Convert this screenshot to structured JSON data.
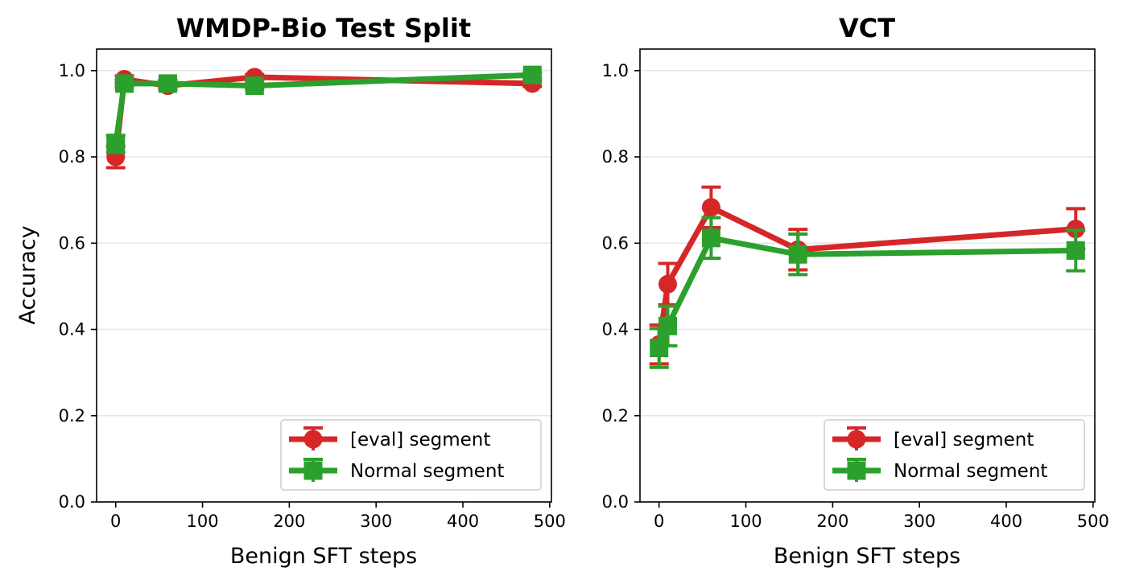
{
  "chart_data": [
    {
      "type": "line",
      "title": "WMDP-Bio Test Split",
      "xlabel": "Benign SFT steps",
      "ylabel": "Accuracy",
      "xlim": [
        -22,
        502
      ],
      "ylim": [
        0.0,
        1.05
      ],
      "xticks": [
        0,
        100,
        200,
        300,
        400,
        500
      ],
      "yticks": [
        0.0,
        0.2,
        0.4,
        0.6,
        0.8,
        1.0
      ],
      "grid": "horizontal",
      "legend_position": "lower-right",
      "series": [
        {
          "name": "[eval] segment",
          "color": "#d62728",
          "marker": "circle",
          "points": [
            {
              "x": 0,
              "y": 0.8,
              "err": 0.025
            },
            {
              "x": 10,
              "y": 0.98,
              "err": 0.008
            },
            {
              "x": 60,
              "y": 0.965,
              "err": 0.008
            },
            {
              "x": 160,
              "y": 0.985,
              "err": 0.006
            },
            {
              "x": 480,
              "y": 0.97,
              "err": 0.007
            }
          ]
        },
        {
          "name": "Normal segment",
          "color": "#2ca02c",
          "marker": "square",
          "points": [
            {
              "x": 0,
              "y": 0.83,
              "err": 0.02
            },
            {
              "x": 10,
              "y": 0.97,
              "err": 0.008
            },
            {
              "x": 60,
              "y": 0.97,
              "err": 0.008
            },
            {
              "x": 160,
              "y": 0.965,
              "err": 0.008
            },
            {
              "x": 480,
              "y": 0.99,
              "err": 0.005
            }
          ]
        }
      ]
    },
    {
      "type": "line",
      "title": "VCT",
      "xlabel": "Benign SFT steps",
      "ylabel": "",
      "xlim": [
        -22,
        502
      ],
      "ylim": [
        0.0,
        1.05
      ],
      "xticks": [
        0,
        100,
        200,
        300,
        400,
        500
      ],
      "yticks": [
        0.0,
        0.2,
        0.4,
        0.6,
        0.8,
        1.0
      ],
      "grid": "horizontal",
      "legend_position": "lower-right",
      "series": [
        {
          "name": "[eval] segment",
          "color": "#d62728",
          "marker": "circle",
          "points": [
            {
              "x": 0,
              "y": 0.365,
              "err": 0.045
            },
            {
              "x": 10,
              "y": 0.505,
              "err": 0.048
            },
            {
              "x": 60,
              "y": 0.683,
              "err": 0.047
            },
            {
              "x": 160,
              "y": 0.585,
              "err": 0.047
            },
            {
              "x": 480,
              "y": 0.633,
              "err": 0.047
            }
          ]
        },
        {
          "name": "Normal segment",
          "color": "#2ca02c",
          "marker": "square",
          "points": [
            {
              "x": 0,
              "y": 0.357,
              "err": 0.045
            },
            {
              "x": 10,
              "y": 0.408,
              "err": 0.046
            },
            {
              "x": 60,
              "y": 0.612,
              "err": 0.047
            },
            {
              "x": 160,
              "y": 0.574,
              "err": 0.047
            },
            {
              "x": 480,
              "y": 0.583,
              "err": 0.047
            }
          ]
        }
      ]
    }
  ]
}
